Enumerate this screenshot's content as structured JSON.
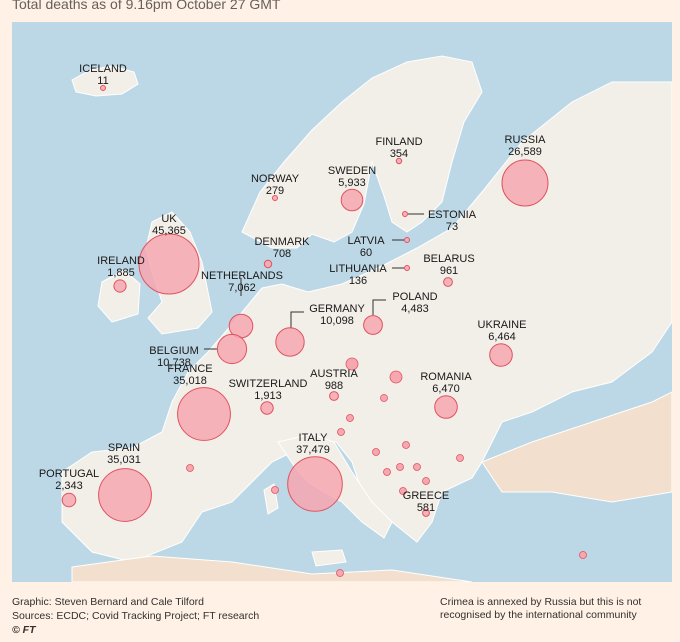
{
  "subtitle": "Total deaths as of 9.16pm October 27 GMT",
  "colors": {
    "sea": "#bcd8e6",
    "land": "#f2efe9",
    "other_land": "#f2dfce",
    "bubble_fill": "#f7a7b0",
    "bubble_stroke": "#e0525f"
  },
  "countries": [
    {
      "id": "iceland",
      "name": "ICELAND",
      "value": "11"
    },
    {
      "id": "finland",
      "name": "FINLAND",
      "value": "354"
    },
    {
      "id": "russia",
      "name": "RUSSIA",
      "value": "26,589"
    },
    {
      "id": "norway",
      "name": "NORWAY",
      "value": "279"
    },
    {
      "id": "sweden",
      "name": "SWEDEN",
      "value": "5,933"
    },
    {
      "id": "estonia",
      "name": "ESTONIA",
      "value": "73"
    },
    {
      "id": "uk",
      "name": "UK",
      "value": "45,365"
    },
    {
      "id": "denmark",
      "name": "DENMARK",
      "value": "708"
    },
    {
      "id": "latvia",
      "name": "LATVIA",
      "value": "60"
    },
    {
      "id": "ireland",
      "name": "IRELAND",
      "value": "1,885"
    },
    {
      "id": "lithuania",
      "name": "LITHUANIA",
      "value": "136"
    },
    {
      "id": "belarus",
      "name": "BELARUS",
      "value": "961"
    },
    {
      "id": "netherlands",
      "name": "NETHERLANDS",
      "value": "7,062"
    },
    {
      "id": "poland",
      "name": "POLAND",
      "value": "4,483"
    },
    {
      "id": "germany",
      "name": "GERMANY",
      "value": "10,098"
    },
    {
      "id": "ukraine",
      "name": "UKRAINE",
      "value": "6,464"
    },
    {
      "id": "belgium",
      "name": "BELGIUM",
      "value": "10,738"
    },
    {
      "id": "france",
      "name": "FRANCE",
      "value": "35,018"
    },
    {
      "id": "austria",
      "name": "AUSTRIA",
      "value": "988"
    },
    {
      "id": "romania",
      "name": "ROMANIA",
      "value": "6,470"
    },
    {
      "id": "switzerland",
      "name": "SWITZERLAND",
      "value": "1,913"
    },
    {
      "id": "italy",
      "name": "ITALY",
      "value": "37,479"
    },
    {
      "id": "spain",
      "name": "SPAIN",
      "value": "35,031"
    },
    {
      "id": "portugal",
      "name": "PORTUGAL",
      "value": "2,343"
    },
    {
      "id": "greece",
      "name": "GREECE",
      "value": "581"
    }
  ],
  "footer": {
    "graphic": "Graphic: Steven Bernard and Cale Tilford",
    "sources": "Sources: ECDC; Covid Tracking Project; FT research",
    "copyright": "© FT",
    "note": "Crimea is annexed by Russia but this is not recognised by the international community"
  }
}
